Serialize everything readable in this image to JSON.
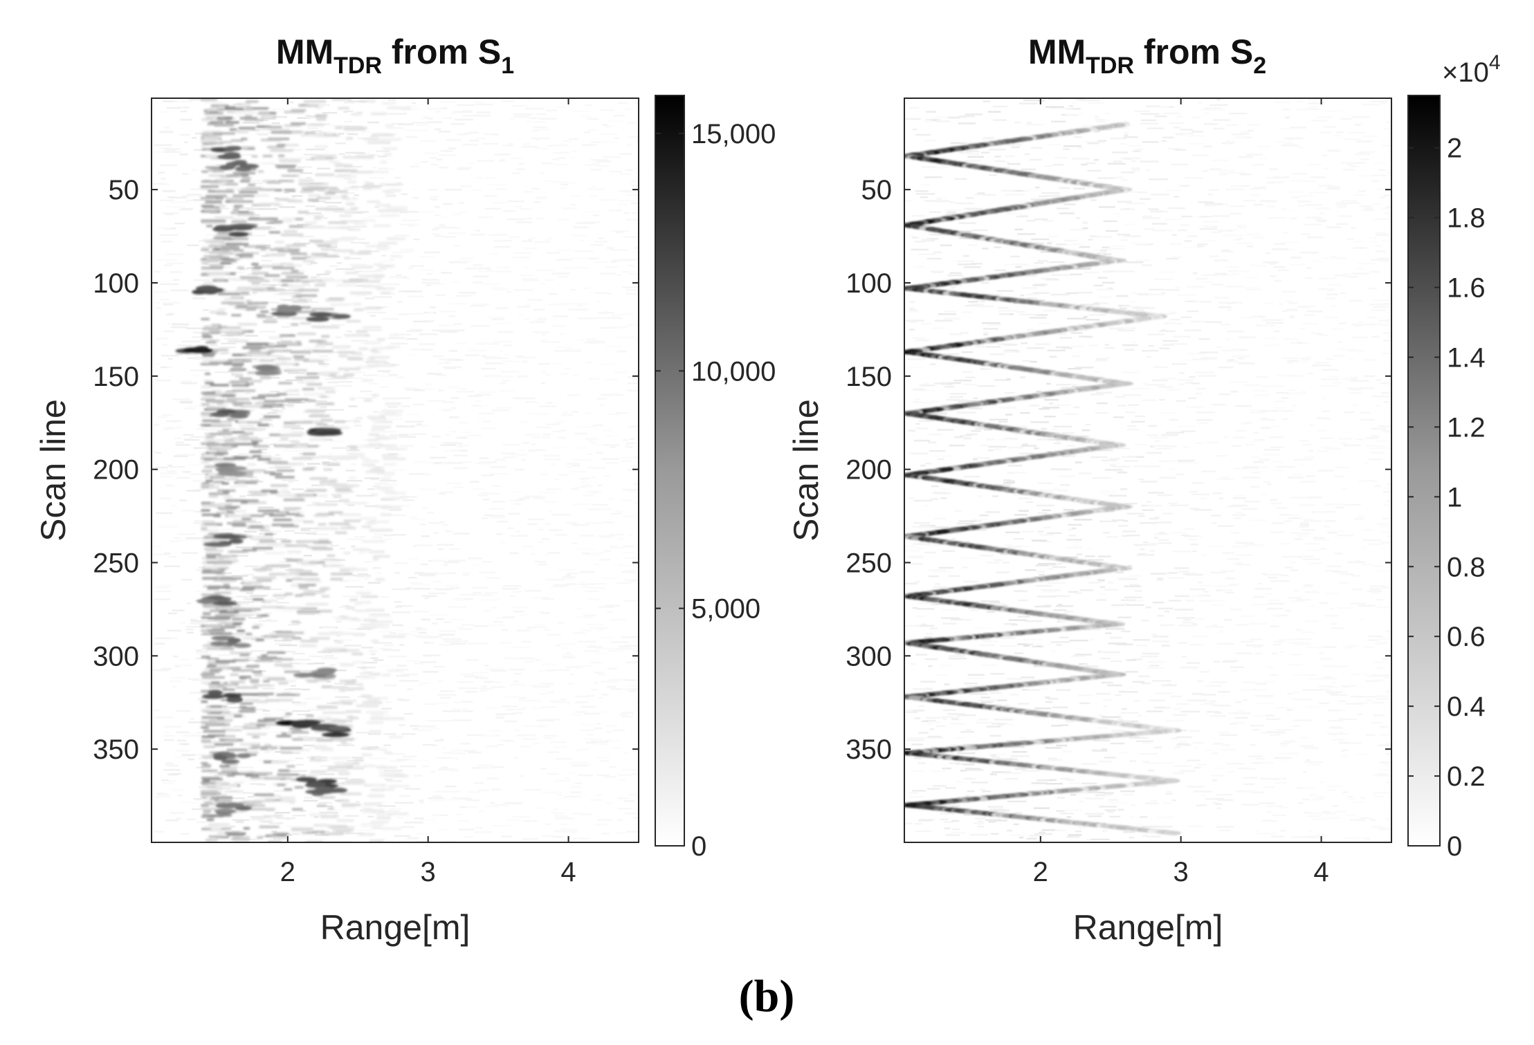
{
  "figure": {
    "panel_label": "(b)"
  },
  "chart_data": [
    {
      "type": "heatmap",
      "title": {
        "main": "MM",
        "sub": "TDR",
        "mid": " from S",
        "sub2": "1"
      },
      "xlabel": "Range[m]",
      "ylabel": "Scan line",
      "xlim": [
        1.03,
        4.5
      ],
      "ylim": [
        400,
        1
      ],
      "xticks": [
        2,
        3,
        4
      ],
      "yticks": [
        50,
        100,
        150,
        200,
        250,
        300,
        350
      ],
      "ytick_labels": [
        "50",
        "100",
        "150",
        "200",
        "250",
        "300",
        "350"
      ],
      "colormap": "white-to-black grayscale",
      "colorbar": {
        "limits": [
          0,
          15800
        ],
        "ticks": [
          0,
          5000,
          10000,
          15000
        ],
        "tick_labels": [
          "0",
          "5,000",
          "10,000",
          "15,000"
        ],
        "exponent_label": ""
      },
      "pattern": "Dense strong returns confined to roughly 1.4–2.6 m range across all scan lines, weak diffuse returns beyond 3 m",
      "features": [
        {
          "x": 1.55,
          "y": 30,
          "value": 12000
        },
        {
          "x": 1.65,
          "y": 38,
          "value": 11000
        },
        {
          "x": 1.6,
          "y": 72,
          "value": 13000
        },
        {
          "x": 1.45,
          "y": 104,
          "value": 14500
        },
        {
          "x": 2.0,
          "y": 115,
          "value": 10000
        },
        {
          "x": 2.3,
          "y": 118,
          "value": 11000
        },
        {
          "x": 1.35,
          "y": 137,
          "value": 15000
        },
        {
          "x": 1.9,
          "y": 147,
          "value": 9000
        },
        {
          "x": 1.6,
          "y": 170,
          "value": 12000
        },
        {
          "x": 2.25,
          "y": 180,
          "value": 13000
        },
        {
          "x": 1.55,
          "y": 200,
          "value": 9000
        },
        {
          "x": 1.55,
          "y": 238,
          "value": 12000
        },
        {
          "x": 1.5,
          "y": 270,
          "value": 11000
        },
        {
          "x": 1.6,
          "y": 292,
          "value": 10000
        },
        {
          "x": 2.2,
          "y": 310,
          "value": 9000
        },
        {
          "x": 1.55,
          "y": 322,
          "value": 12000
        },
        {
          "x": 2.05,
          "y": 338,
          "value": 15000
        },
        {
          "x": 2.3,
          "y": 340,
          "value": 13500
        },
        {
          "x": 1.6,
          "y": 355,
          "value": 10000
        },
        {
          "x": 2.2,
          "y": 368,
          "value": 14000
        },
        {
          "x": 2.3,
          "y": 373,
          "value": 12000
        },
        {
          "x": 1.6,
          "y": 382,
          "value": 10000
        }
      ]
    },
    {
      "type": "heatmap",
      "title": {
        "main": "MM",
        "sub": "TDR",
        "mid": " from S",
        "sub2": "2"
      },
      "xlabel": "Range[m]",
      "ylabel": "Scan line",
      "xlim": [
        1.03,
        4.5
      ],
      "ylim": [
        400,
        1
      ],
      "xticks": [
        2,
        3,
        4
      ],
      "yticks": [
        50,
        100,
        150,
        200,
        250,
        300,
        350
      ],
      "ytick_labels": [
        "50",
        "100",
        "150",
        "200",
        "250",
        "300",
        "350"
      ],
      "colormap": "white-to-black grayscale",
      "colorbar": {
        "limits": [
          0,
          2.15
        ],
        "ticks": [
          0,
          0.2,
          0.4,
          0.6,
          0.8,
          1,
          1.2,
          1.4,
          1.6,
          1.8,
          2
        ],
        "tick_labels": [
          "0",
          "0.2",
          "0.4",
          "0.6",
          "0.8",
          "1",
          "1.2",
          "1.4",
          "1.6",
          "1.8",
          "2"
        ],
        "exponent_label": "×10",
        "exponent_power": "4"
      },
      "pattern": "Zigzag of diagonal streaks: near-range maxima at ~1.05–1.3 m sweeping out to ~2.6–2.9 m and back, repeating roughly every 33 scan lines",
      "zigzag": [
        {
          "scan": 15,
          "range": 2.6
        },
        {
          "scan": 32,
          "range": 1.05
        },
        {
          "scan": 50,
          "range": 2.6
        },
        {
          "scan": 69,
          "range": 1.05
        },
        {
          "scan": 88,
          "range": 2.55
        },
        {
          "scan": 103,
          "range": 1.05
        },
        {
          "scan": 118,
          "range": 2.85
        },
        {
          "scan": 137,
          "range": 1.05
        },
        {
          "scan": 154,
          "range": 2.6
        },
        {
          "scan": 170,
          "range": 1.05
        },
        {
          "scan": 187,
          "range": 2.55
        },
        {
          "scan": 203,
          "range": 1.05
        },
        {
          "scan": 220,
          "range": 2.6
        },
        {
          "scan": 236,
          "range": 1.05
        },
        {
          "scan": 253,
          "range": 2.6
        },
        {
          "scan": 268,
          "range": 1.05
        },
        {
          "scan": 283,
          "range": 2.55
        },
        {
          "scan": 293,
          "range": 1.05
        },
        {
          "scan": 310,
          "range": 2.55
        },
        {
          "scan": 322,
          "range": 1.05
        },
        {
          "scan": 340,
          "range": 2.95
        },
        {
          "scan": 352,
          "range": 1.05
        },
        {
          "scan": 367,
          "range": 2.95
        },
        {
          "scan": 380,
          "range": 1.05
        },
        {
          "scan": 395,
          "range": 2.95
        }
      ],
      "streak_peak": 2.1
    }
  ]
}
